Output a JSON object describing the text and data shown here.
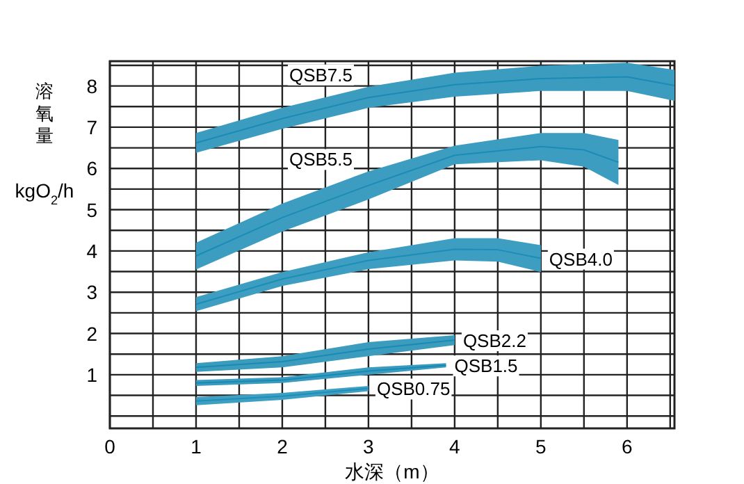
{
  "chart_data": {
    "type": "line",
    "ylabel": "溶氧量 kgO$_{2}$/h",
    "xlabel": "水深（m）",
    "xlim": [
      0,
      6.55
    ],
    "ylim": [
      -0.3,
      8.6
    ],
    "xticks": [
      0,
      {
        "value": 0.5,
        "label": null
      },
      1,
      {
        "value": 1.5,
        "label": null
      },
      2,
      {
        "value": 2.5,
        "label": null
      },
      3,
      {
        "value": 3.5,
        "label": null
      },
      4,
      {
        "value": 4.5,
        "label": null
      },
      5,
      {
        "value": 5.5,
        "label": null
      },
      6,
      {
        "value": 6.5,
        "label": null
      }
    ],
    "yticks": [
      {
        "value": 0,
        "label": null
      },
      {
        "value": 0.5,
        "label": null
      },
      1,
      {
        "value": 1.5,
        "label": null
      },
      2,
      {
        "value": 2.5,
        "label": null
      },
      3,
      {
        "value": 3.5,
        "label": null
      },
      4,
      {
        "value": 4.5,
        "label": null
      },
      5,
      {
        "value": 5.5,
        "label": null
      },
      6,
      {
        "value": 6.5,
        "label": null
      },
      7,
      {
        "value": 7.5,
        "label": null
      },
      8,
      {
        "value": 8.5,
        "label": null
      }
    ],
    "grid": true,
    "legend": false,
    "marker": "none",
    "series": [
      {
        "name": "QSB7.5",
        "color": "#1a8bb4",
        "x": [
          1,
          2,
          3,
          4,
          5,
          6,
          6.55
        ],
        "values": [
          6.62,
          7.21,
          7.72,
          8.03,
          8.18,
          8.22,
          8.01
        ],
        "lower": [
          6.38,
          6.96,
          7.47,
          7.74,
          7.88,
          7.88,
          7.64
        ],
        "upper": [
          6.86,
          7.47,
          7.98,
          8.32,
          8.49,
          8.56,
          8.39
        ]
      },
      {
        "name": "QSB5.5",
        "color": "#1b8cb5",
        "x": [
          1,
          2,
          3,
          4,
          5,
          5.5,
          5.9
        ],
        "values": [
          3.88,
          4.81,
          5.59,
          6.32,
          6.53,
          6.45,
          6.15
        ],
        "lower": [
          3.55,
          4.47,
          5.25,
          6.1,
          6.2,
          6.04,
          5.6
        ],
        "upper": [
          4.2,
          5.15,
          5.93,
          6.55,
          6.86,
          6.86,
          6.69
        ]
      },
      {
        "name": "QSB4.0",
        "color": "#1c8db6",
        "x": [
          1,
          2,
          3,
          4,
          4.5,
          5
        ],
        "values": [
          2.71,
          3.32,
          3.77,
          4.04,
          4.03,
          3.82
        ],
        "lower": [
          2.54,
          3.15,
          3.56,
          3.77,
          3.74,
          3.49
        ],
        "upper": [
          2.88,
          3.49,
          3.97,
          4.31,
          4.31,
          4.14
        ]
      },
      {
        "name": "QSB2.2",
        "color": "#198ab3",
        "x": [
          1,
          2,
          3,
          4
        ],
        "values": [
          1.18,
          1.32,
          1.62,
          1.84
        ],
        "lower": [
          1.07,
          1.18,
          1.45,
          1.72
        ],
        "upper": [
          1.28,
          1.45,
          1.79,
          1.96
        ]
      },
      {
        "name": "QSB1.5",
        "color": "#1889b2",
        "x": [
          1,
          2,
          3,
          3.9
        ],
        "values": [
          0.8,
          0.87,
          1.09,
          1.23
        ],
        "lower": [
          0.73,
          0.8,
          1.0,
          1.18
        ],
        "upper": [
          0.87,
          0.94,
          1.18,
          1.28
        ]
      },
      {
        "name": "QSB0.75",
        "color": "#1d8eb7",
        "x": [
          1,
          2,
          3
        ],
        "values": [
          0.36,
          0.48,
          0.67
        ],
        "lower": [
          0.26,
          0.39,
          0.6
        ],
        "upper": [
          0.46,
          0.56,
          0.73
        ]
      }
    ]
  }
}
